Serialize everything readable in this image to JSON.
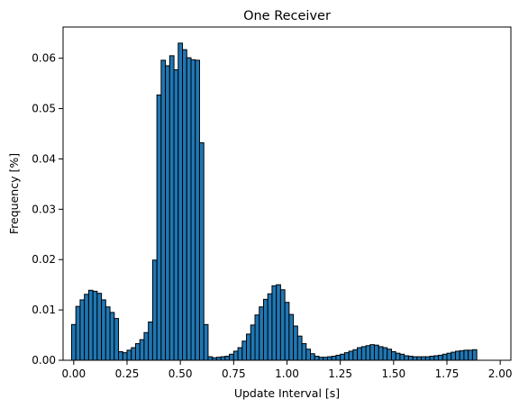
{
  "chart_data": {
    "type": "bar",
    "title": "One Receiver",
    "xlabel": "Update Interval [s]",
    "ylabel": "Frequency [%]",
    "xlim": [
      -0.05,
      2.05
    ],
    "ylim": [
      0,
      0.0662
    ],
    "xticks": [
      0.0,
      0.25,
      0.5,
      0.75,
      1.0,
      1.25,
      1.5,
      1.75,
      2.0
    ],
    "xtick_labels": [
      "0.00",
      "0.25",
      "0.50",
      "0.75",
      "1.00",
      "1.25",
      "1.50",
      "1.75",
      "2.00"
    ],
    "yticks": [
      0.0,
      0.01,
      0.02,
      0.03,
      0.04,
      0.05,
      0.06
    ],
    "ytick_labels": [
      "0.00",
      "0.01",
      "0.02",
      "0.03",
      "0.04",
      "0.05",
      "0.06"
    ],
    "grid": false,
    "bin_start": 0.0,
    "bin_width": 0.02,
    "values": [
      0.0071,
      0.0107,
      0.012,
      0.0131,
      0.0139,
      0.0137,
      0.0133,
      0.012,
      0.0106,
      0.0095,
      0.0083,
      0.0017,
      0.0015,
      0.002,
      0.0025,
      0.0033,
      0.0041,
      0.0055,
      0.0076,
      0.0199,
      0.0527,
      0.0596,
      0.0585,
      0.0605,
      0.0577,
      0.063,
      0.0617,
      0.0601,
      0.0597,
      0.0596,
      0.0432,
      0.0071,
      0.0007,
      0.0005,
      0.0006,
      0.0007,
      0.0008,
      0.0012,
      0.0018,
      0.0025,
      0.0038,
      0.0052,
      0.007,
      0.009,
      0.0106,
      0.0121,
      0.0132,
      0.0148,
      0.015,
      0.014,
      0.0115,
      0.0091,
      0.0068,
      0.0048,
      0.0033,
      0.0022,
      0.0013,
      0.0008,
      0.0006,
      0.0006,
      0.0007,
      0.0008,
      0.001,
      0.0012,
      0.0015,
      0.0018,
      0.0021,
      0.0025,
      0.0027,
      0.0029,
      0.0031,
      0.003,
      0.0027,
      0.0025,
      0.0022,
      0.0017,
      0.0014,
      0.0012,
      0.0009,
      0.0008,
      0.0007,
      0.0007,
      0.0007,
      0.0007,
      0.0008,
      0.0009,
      0.001,
      0.0012,
      0.0014,
      0.0016,
      0.0018,
      0.0019,
      0.002,
      0.002,
      0.0021
    ]
  }
}
